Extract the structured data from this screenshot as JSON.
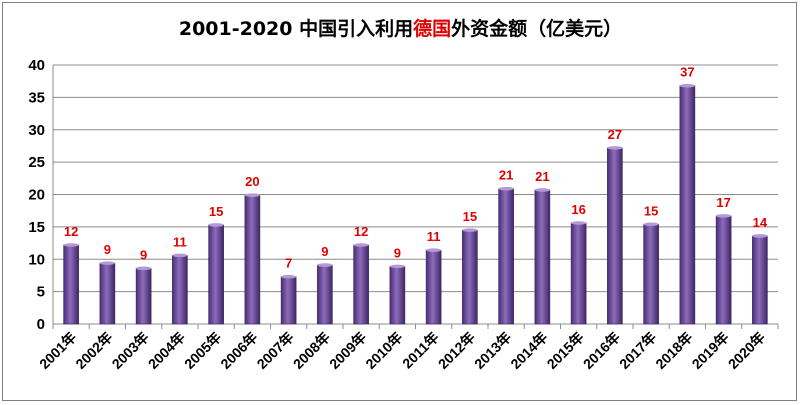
{
  "chart_data": {
    "type": "bar",
    "title_parts": [
      "2001-2020 中国引入利用",
      "德国",
      "外资金额（亿美元）"
    ],
    "title_highlight_color": "#e00000",
    "categories": [
      "2001年",
      "2002年",
      "2003年",
      "2004年",
      "2005年",
      "2006年",
      "2007年",
      "2008年",
      "2009年",
      "2010年",
      "2011年",
      "2012年",
      "2013年",
      "2014年",
      "2015年",
      "2016年",
      "2017年",
      "2018年",
      "2019年",
      "2020年"
    ],
    "values": [
      12.2,
      9.4,
      8.6,
      10.6,
      15.3,
      19.9,
      7.3,
      9.1,
      12.2,
      8.9,
      11.4,
      14.5,
      20.9,
      20.7,
      15.6,
      27.2,
      15.4,
      36.8,
      16.7,
      13.6
    ],
    "data_labels": [
      "12",
      "9",
      "9",
      "11",
      "15",
      "20",
      "7",
      "9",
      "12",
      "9",
      "11",
      "15",
      "21",
      "21",
      "16",
      "27",
      "15",
      "37",
      "17",
      "14"
    ],
    "y_ticks": [
      0,
      5,
      10,
      15,
      20,
      25,
      30,
      35,
      40
    ],
    "ylim": [
      0,
      40
    ],
    "xlabel": "",
    "ylabel": "",
    "grid": true,
    "legend": "none",
    "bar_color": "#7b5aa6",
    "label_color": "#e00000"
  }
}
